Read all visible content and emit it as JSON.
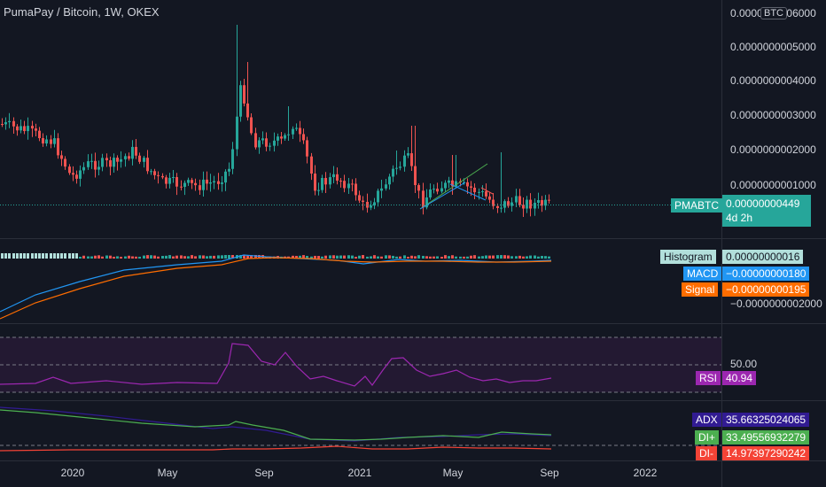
{
  "header": {
    "title": "PumaPay / Bitcoin, 1W, OKEX",
    "currency_button": "BTC"
  },
  "price_axis": {
    "ticks": [
      "0.0000000006000",
      "0.0000000005000",
      "0.0000000004000",
      "0.0000000003000",
      "0.0000000002000",
      "0.0000000001000"
    ]
  },
  "price_label": {
    "symbol": "PMABTC",
    "value": "0.00000000449",
    "countdown": "4d 2h"
  },
  "macd": {
    "histogram_label": "Histogram",
    "histogram_value": "0.00000000016",
    "macd_label": "MACD",
    "macd_value": "−0.00000000180",
    "signal_label": "Signal",
    "signal_value": "−0.00000000195",
    "axis_tick": "−0.0000000002000"
  },
  "rsi": {
    "label": "RSI",
    "value": "40.94",
    "level": "50.00"
  },
  "dmi": {
    "adx_label": "ADX",
    "adx_value": "35.66325024065",
    "diplus_label": "DI+",
    "diplus_value": "33.49556932279",
    "diminus_label": "DI-",
    "diminus_value": "14.97397290242"
  },
  "time_axis": {
    "ticks": [
      "2020",
      "May",
      "Sep",
      "2021",
      "May",
      "Sep",
      "2022"
    ]
  },
  "colors": {
    "background": "#131722",
    "up": "#26a69a",
    "down": "#ef5350",
    "macd": "#2196f3",
    "signal": "#ff6d00",
    "rsi": "#9c27b0",
    "adx": "#311b92",
    "di_plus": "#4caf50",
    "di_minus": "#f44336"
  }
}
